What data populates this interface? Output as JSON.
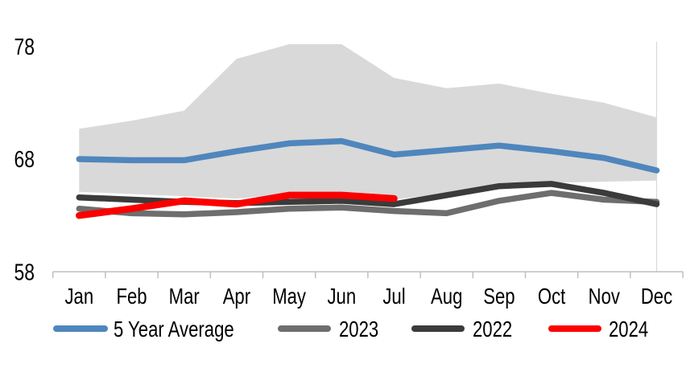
{
  "chart_data": {
    "type": "line",
    "title": "",
    "categories": [
      "Jan",
      "Feb",
      "Mar",
      "Apr",
      "May",
      "Jun",
      "Jul",
      "Aug",
      "Sep",
      "Oct",
      "Nov",
      "Dec"
    ],
    "y_ticks": [
      78,
      68,
      58
    ],
    "ylim": [
      58,
      78.5
    ],
    "grid": false,
    "legend_position": "bottom",
    "band": {
      "name": "5-year-range-band",
      "color": "#d9d9d9",
      "top": [
        70.7,
        71.4,
        72.3,
        76.9,
        78.2,
        78.2,
        75.2,
        74.3,
        74.7,
        73.8,
        73.0,
        71.7
      ],
      "bottom": [
        65.1,
        64.9,
        64.7,
        64.5,
        64.9,
        64.9,
        64.4,
        65.0,
        65.5,
        65.9,
        66.0,
        66.1
      ]
    },
    "series": [
      {
        "name": "5 Year Average",
        "color": "#4f86bd",
        "width": 7.5,
        "values": [
          68.0,
          67.9,
          67.9,
          68.7,
          69.4,
          69.6,
          68.4,
          68.8,
          69.2,
          68.7,
          68.1,
          67.0
        ]
      },
      {
        "name": "2023",
        "color": "#6e6e6e",
        "width": 7.5,
        "values": [
          63.6,
          63.2,
          63.1,
          63.3,
          63.6,
          63.7,
          63.4,
          63.2,
          64.3,
          65.0,
          64.4,
          64.2
        ]
      },
      {
        "name": "2022",
        "color": "#3b3b3b",
        "width": 7.5,
        "values": [
          64.6,
          64.4,
          64.2,
          64.1,
          64.2,
          64.3,
          64.0,
          64.8,
          65.6,
          65.8,
          65.0,
          64.0
        ]
      },
      {
        "name": "2024",
        "color": "#fb0000",
        "width": 8.5,
        "values": [
          63.0,
          63.6,
          64.3,
          64.0,
          64.8,
          64.8,
          64.5
        ]
      }
    ],
    "axis_color": "#bfbfbf",
    "gridline_color": "#d9d9d9",
    "text_color": "#000000"
  }
}
